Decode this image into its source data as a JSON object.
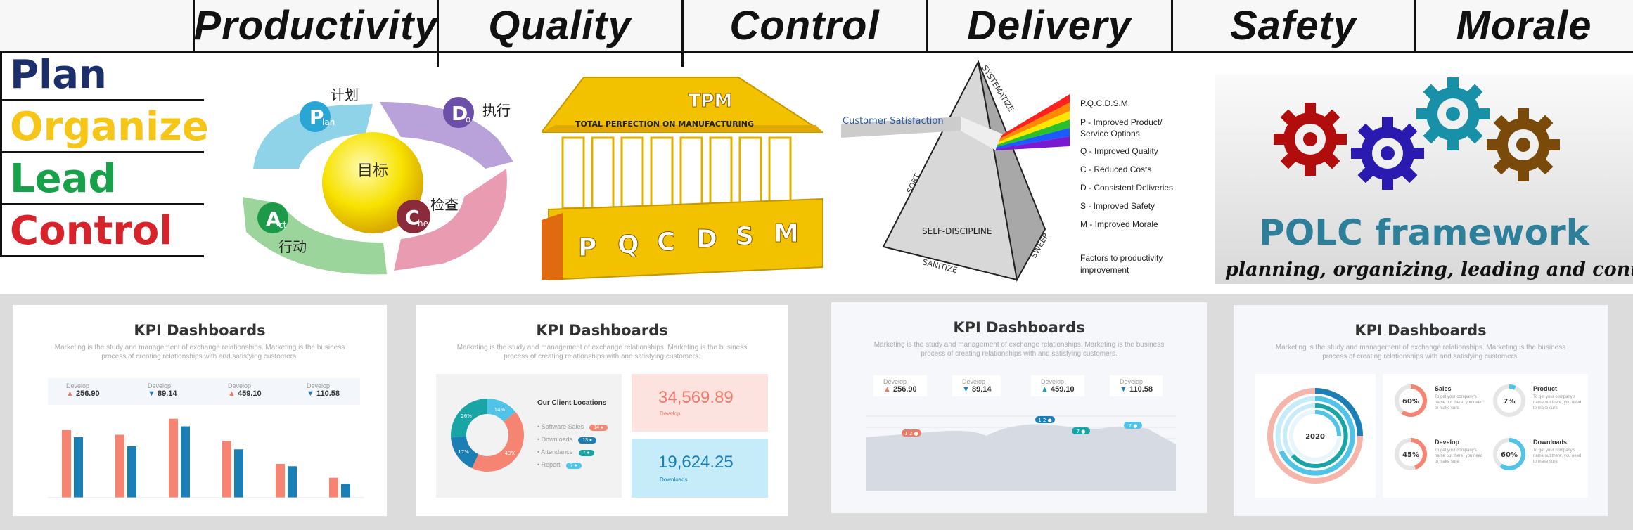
{
  "header": {
    "columns": [
      "Productivity",
      "Quality",
      "Control",
      "Delivery",
      "Safety",
      "Morale"
    ]
  },
  "polc_rows": [
    {
      "label": "Plan",
      "color": "#1c2f6b"
    },
    {
      "label": "Organize",
      "color": "#f5c518"
    },
    {
      "label": "Lead",
      "color": "#17a24a"
    },
    {
      "label": "Control",
      "color": "#d8232a"
    }
  ],
  "pdca": {
    "center": "目标",
    "plan_letter": "P",
    "plan_word": "lan",
    "plan_cn": "计划",
    "do_letter": "D",
    "do_word": "o",
    "do_cn": "执行",
    "check_letter": "C",
    "check_word": "heck",
    "check_cn": "检查",
    "act_letter": "A",
    "act_word": "ct",
    "act_cn": "行动"
  },
  "tpm": {
    "title": "TPM",
    "subtitle": "TOTAL PERFECTION ON MANUFACTURING",
    "letters": [
      "P",
      "Q",
      "C",
      "D",
      "S",
      "M"
    ]
  },
  "prism": {
    "customer": "Customer Satisfaction",
    "sides": {
      "top": "SYSTEMATIZE",
      "left": "SORT",
      "base": "SELF-DISCIPLINE",
      "bottom": "SANITIZE",
      "right": "SWEEP"
    },
    "heading": "P.Q.C.D.S.M.",
    "items": [
      "P - Improved Product/",
      "Service Options",
      "Q - Improved Quality",
      "C - Reduced Costs",
      "D - Consistent Deliveries",
      "S - Improved Safety",
      "M - Improved Morale"
    ],
    "footer_1": "Factors to productivity",
    "footer_2": "improvement"
  },
  "polc": {
    "title": "POLC framework",
    "subtitle": "planning, organizing, leading and controllin"
  },
  "cards": {
    "title": "KPI Dashboards",
    "desc_1": "Marketing is the study and management of exchange relationships. Marketing is the business",
    "desc_2": "process of creating relationships with and satisfying customers."
  },
  "card1": {
    "stats": [
      {
        "label": "Develop",
        "arrow": "▲",
        "value": "256.90"
      },
      {
        "label": "Develop",
        "arrow": "▼",
        "value": "89.14"
      },
      {
        "label": "Develop",
        "arrow": "▲",
        "value": "459.10"
      },
      {
        "label": "Develop",
        "arrow": "▼",
        "value": "110.58"
      }
    ],
    "colors": {
      "coral": "#f58473",
      "blue": "#1b7fb5"
    }
  },
  "chart_data": {
    "type": "bar",
    "categories": [
      "",
      "",
      "",
      "",
      "",
      ""
    ],
    "series": [
      {
        "values": [
          88,
          82,
          103,
          74,
          44,
          26
        ]
      },
      {
        "values": [
          79,
          67,
          93,
          63,
          41,
          18
        ]
      }
    ]
  },
  "card2": {
    "locations_title": "Our Client Locations",
    "legend": [
      {
        "label": "Software Sales",
        "pill": "14 ●",
        "color": "#f58473"
      },
      {
        "label": "Downloads",
        "pill": "13 ●",
        "color": "#1b7fb5"
      },
      {
        "label": "Attendance",
        "pill": "7 ●",
        "color": "#19a5a5"
      },
      {
        "label": "Report",
        "pill": "7 ●",
        "color": "#4fc3e8"
      }
    ],
    "donut": [
      {
        "label": "14%",
        "value": 14,
        "color": "#4fc3e8"
      },
      {
        "label": "43%",
        "value": 43,
        "color": "#f58473"
      },
      {
        "label": "17%",
        "value": 17,
        "color": "#1b7fb5"
      },
      {
        "label": "26%",
        "value": 26,
        "color": "#19a5a5"
      }
    ],
    "big1": {
      "value": "34,569.89",
      "label": "Develop"
    },
    "big2": {
      "value": "19,624.25",
      "label": "Downloads"
    }
  },
  "card3": {
    "stats": [
      {
        "label": "Develop",
        "arrow": "▲",
        "value": "256.90"
      },
      {
        "label": "Develop",
        "arrow": "▼",
        "value": "89.14"
      },
      {
        "label": "Develop",
        "arrow": "▲",
        "value": "459.10"
      },
      {
        "label": "Develop",
        "arrow": "▼",
        "value": "110.58"
      }
    ],
    "pills": [
      "1 2 ●",
      "1 2 ●",
      "7 ●",
      "7 ●"
    ]
  },
  "card4": {
    "center": "2020",
    "items": [
      {
        "pct": "60%",
        "title": "Sales",
        "text": "To get your company's name out there, you need to make sure.",
        "color": "#f58473",
        "fraction": 0.6
      },
      {
        "pct": "7%",
        "title": "Product",
        "text": "To get your company's name out there, you need to make sure.",
        "color": "#4fc3e8",
        "fraction": 0.07
      },
      {
        "pct": "45%",
        "title": "Develop",
        "text": "To get your company's name out there, you need to make sure.",
        "color": "#f58473",
        "fraction": 0.45
      },
      {
        "pct": "60%",
        "title": "Downloads",
        "text": "To get your company's name out there, you need to make sure.",
        "color": "#4fc3e8",
        "fraction": 0.6
      }
    ]
  }
}
